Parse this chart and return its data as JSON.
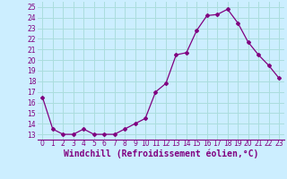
{
  "hours": [
    0,
    1,
    2,
    3,
    4,
    5,
    6,
    7,
    8,
    9,
    10,
    11,
    12,
    13,
    14,
    15,
    16,
    17,
    18,
    19,
    20,
    21,
    22,
    23
  ],
  "values": [
    16.5,
    13.5,
    13.0,
    13.0,
    13.5,
    13.0,
    13.0,
    13.0,
    13.5,
    14.0,
    14.5,
    17.0,
    17.8,
    20.5,
    20.7,
    22.8,
    24.2,
    24.3,
    24.8,
    23.5,
    21.7,
    20.5,
    19.5,
    18.3
  ],
  "line_color": "#800080",
  "marker": "D",
  "marker_size": 2.0,
  "bg_color": "#cceeff",
  "grid_color": "#aadddd",
  "xlabel": "Windchill (Refroidissement éolien,°C)",
  "xlabel_color": "#800080",
  "ylim": [
    12.5,
    25.5
  ],
  "xlim": [
    -0.5,
    23.5
  ],
  "yticks": [
    13,
    14,
    15,
    16,
    17,
    18,
    19,
    20,
    21,
    22,
    23,
    24,
    25
  ],
  "xtick_labels": [
    "0",
    "1",
    "2",
    "3",
    "4",
    "5",
    "6",
    "7",
    "8",
    "9",
    "10",
    "11",
    "12",
    "13",
    "14",
    "15",
    "16",
    "17",
    "18",
    "19",
    "20",
    "21",
    "22",
    "23"
  ],
  "tick_color": "#800080",
  "tick_fontsize": 5.5,
  "xlabel_fontsize": 7.0
}
